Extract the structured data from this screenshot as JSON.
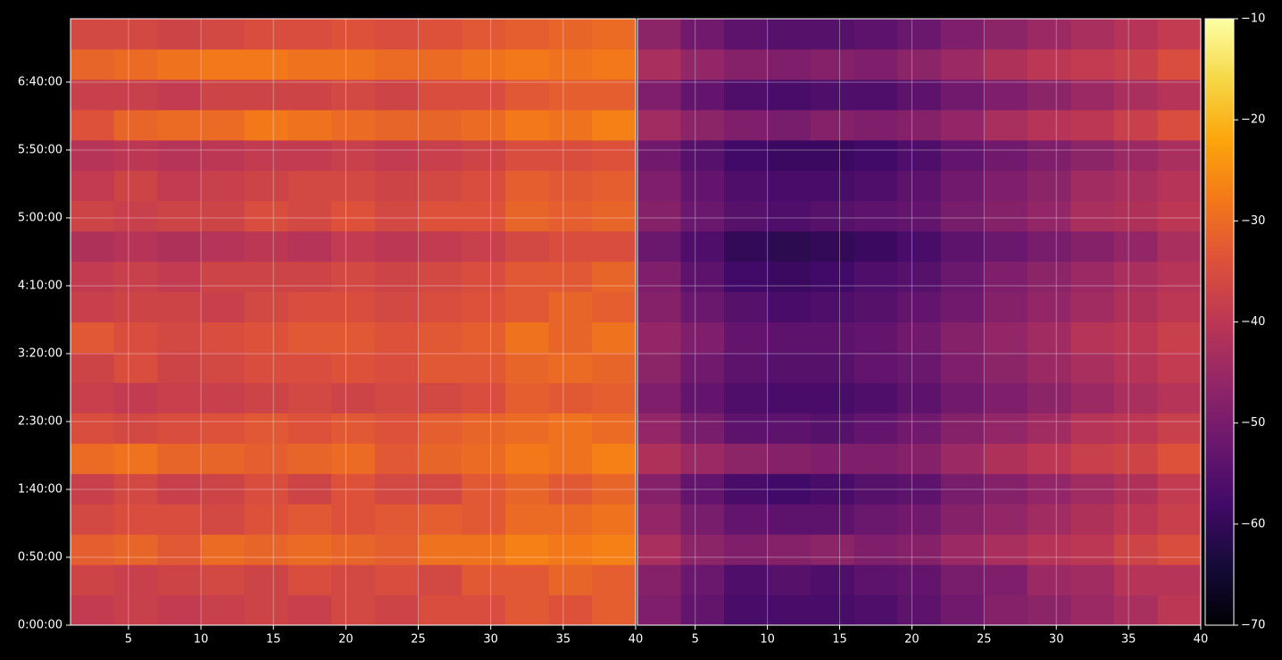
{
  "chart_data": {
    "type": "heatmap",
    "colormap": "inferno",
    "grid": true,
    "xbins": [
      1,
      4,
      7,
      10,
      13,
      16,
      19,
      22,
      25,
      28,
      31,
      34,
      37,
      40
    ],
    "ybins": [
      0,
      1340,
      2680,
      4020,
      5360,
      6700,
      8040,
      9380,
      10720,
      12060,
      13400,
      14740,
      16080,
      17420,
      18760,
      20100,
      21440,
      22780,
      24120,
      25460,
      26800
    ],
    "xlim": [
      1,
      40
    ],
    "xticks": [
      5,
      10,
      15,
      20,
      25,
      30,
      35,
      40
    ],
    "ylim": [
      0,
      26800
    ],
    "yticks": [
      {
        "value": 0,
        "label": "0:00:00"
      },
      {
        "value": 3000,
        "label": "0:50:00"
      },
      {
        "value": 6000,
        "label": "1:40:00"
      },
      {
        "value": 9000,
        "label": "2:30:00"
      },
      {
        "value": 12000,
        "label": "3:20:00"
      },
      {
        "value": 15000,
        "label": "4:10:00"
      },
      {
        "value": 18000,
        "label": "5:00:00"
      },
      {
        "value": 21000,
        "label": "5:50:00"
      },
      {
        "value": 24000,
        "label": "6:40:00"
      }
    ],
    "zlim": [
      -70,
      -10
    ],
    "zticks": [
      {
        "value": -70,
        "label": "−70"
      },
      {
        "value": -60,
        "label": "−60"
      },
      {
        "value": -50,
        "label": "−50"
      },
      {
        "value": -40,
        "label": "−40"
      },
      {
        "value": -30,
        "label": "−30"
      },
      {
        "value": -20,
        "label": "−20"
      },
      {
        "value": -10,
        "label": "−10"
      }
    ],
    "panels": [
      {
        "z": [
          [
            -39,
            -38,
            -39,
            -38,
            -37,
            -38,
            -36,
            -37,
            -35,
            -35,
            -33,
            -34,
            -32
          ],
          [
            -37,
            -38,
            -37,
            -36,
            -37,
            -35,
            -36,
            -35,
            -36,
            -33,
            -33,
            -31,
            -32
          ],
          [
            -32,
            -31,
            -33,
            -30,
            -31,
            -30,
            -31,
            -32,
            -29,
            -29,
            -27,
            -28,
            -27
          ],
          [
            -36,
            -35,
            -35,
            -36,
            -34,
            -33,
            -34,
            -33,
            -32,
            -33,
            -30,
            -30,
            -29
          ],
          [
            -38,
            -36,
            -38,
            -37,
            -35,
            -37,
            -34,
            -36,
            -36,
            -33,
            -31,
            -33,
            -31
          ],
          [
            -30,
            -29,
            -31,
            -31,
            -32,
            -31,
            -30,
            -33,
            -31,
            -30,
            -28,
            -29,
            -27
          ],
          [
            -35,
            -36,
            -35,
            -34,
            -33,
            -34,
            -33,
            -34,
            -32,
            -31,
            -30,
            -29,
            -30
          ],
          [
            -38,
            -39,
            -38,
            -38,
            -37,
            -36,
            -37,
            -36,
            -36,
            -35,
            -32,
            -33,
            -32
          ],
          [
            -37,
            -35,
            -37,
            -36,
            -35,
            -35,
            -34,
            -35,
            -33,
            -33,
            -31,
            -30,
            -31
          ],
          [
            -33,
            -35,
            -36,
            -35,
            -34,
            -33,
            -33,
            -34,
            -33,
            -32,
            -29,
            -31,
            -29
          ],
          [
            -38,
            -37,
            -37,
            -38,
            -36,
            -35,
            -35,
            -36,
            -35,
            -34,
            -33,
            -31,
            -32
          ],
          [
            -39,
            -38,
            -39,
            -37,
            -37,
            -37,
            -36,
            -37,
            -36,
            -35,
            -33,
            -33,
            -31
          ],
          [
            -42,
            -41,
            -42,
            -41,
            -40,
            -41,
            -39,
            -40,
            -39,
            -38,
            -36,
            -35,
            -35
          ],
          [
            -37,
            -38,
            -37,
            -37,
            -35,
            -36,
            -34,
            -36,
            -34,
            -34,
            -31,
            -32,
            -31
          ],
          [
            -39,
            -37,
            -39,
            -38,
            -37,
            -36,
            -36,
            -37,
            -36,
            -35,
            -32,
            -33,
            -32
          ],
          [
            -41,
            -40,
            -41,
            -40,
            -39,
            -39,
            -38,
            -39,
            -38,
            -37,
            -35,
            -35,
            -34
          ],
          [
            -34,
            -31,
            -30,
            -30,
            -28,
            -29,
            -30,
            -31,
            -31,
            -30,
            -28,
            -29,
            -27
          ],
          [
            -38,
            -38,
            -39,
            -37,
            -37,
            -37,
            -36,
            -37,
            -35,
            -35,
            -33,
            -32,
            -32
          ],
          [
            -31,
            -30,
            -29,
            -28,
            -28,
            -29,
            -29,
            -30,
            -30,
            -29,
            -28,
            -29,
            -28
          ],
          [
            -36,
            -36,
            -37,
            -36,
            -35,
            -35,
            -34,
            -35,
            -34,
            -33,
            -32,
            -31,
            -30
          ]
        ]
      },
      {
        "z": [
          [
            -49,
            -53,
            -57,
            -57,
            -57,
            -56,
            -54,
            -51,
            -48,
            -47,
            -45,
            -43,
            -40
          ],
          [
            -48,
            -52,
            -56,
            -55,
            -56,
            -54,
            -53,
            -50,
            -49,
            -45,
            -44,
            -41,
            -41
          ],
          [
            -43,
            -47,
            -49,
            -48,
            -47,
            -49,
            -48,
            -45,
            -43,
            -41,
            -40,
            -37,
            -35
          ],
          [
            -46,
            -50,
            -53,
            -54,
            -54,
            -52,
            -51,
            -48,
            -46,
            -44,
            -42,
            -40,
            -38
          ],
          [
            -48,
            -53,
            -57,
            -58,
            -57,
            -55,
            -54,
            -50,
            -48,
            -46,
            -44,
            -42,
            -39
          ],
          [
            -42,
            -45,
            -47,
            -48,
            -49,
            -49,
            -48,
            -45,
            -42,
            -40,
            -38,
            -37,
            -34
          ],
          [
            -46,
            -50,
            -54,
            -54,
            -55,
            -53,
            -51,
            -48,
            -46,
            -44,
            -41,
            -40,
            -38
          ],
          [
            -49,
            -53,
            -56,
            -57,
            -57,
            -56,
            -54,
            -51,
            -49,
            -47,
            -45,
            -43,
            -41
          ],
          [
            -47,
            -51,
            -54,
            -55,
            -55,
            -53,
            -52,
            -49,
            -47,
            -45,
            -43,
            -41,
            -39
          ],
          [
            -46,
            -49,
            -53,
            -54,
            -54,
            -53,
            -51,
            -48,
            -46,
            -44,
            -41,
            -40,
            -38
          ],
          [
            -48,
            -52,
            -55,
            -57,
            -56,
            -55,
            -53,
            -51,
            -48,
            -46,
            -44,
            -42,
            -40
          ],
          [
            -49,
            -54,
            -58,
            -59,
            -58,
            -56,
            -55,
            -52,
            -49,
            -47,
            -45,
            -43,
            -41
          ],
          [
            -52,
            -56,
            -60,
            -61,
            -60,
            -59,
            -57,
            -54,
            -52,
            -50,
            -48,
            -46,
            -43
          ],
          [
            -48,
            -52,
            -55,
            -56,
            -55,
            -54,
            -53,
            -50,
            -48,
            -46,
            -43,
            -42,
            -40
          ],
          [
            -49,
            -53,
            -56,
            -57,
            -57,
            -56,
            -54,
            -51,
            -49,
            -47,
            -44,
            -43,
            -41
          ],
          [
            -51,
            -55,
            -58,
            -59,
            -59,
            -58,
            -56,
            -53,
            -51,
            -49,
            -47,
            -45,
            -43
          ],
          [
            -44,
            -47,
            -49,
            -50,
            -48,
            -49,
            -48,
            -46,
            -43,
            -41,
            -40,
            -38,
            -35
          ],
          [
            -49,
            -53,
            -56,
            -57,
            -56,
            -56,
            -54,
            -51,
            -49,
            -47,
            -45,
            -43,
            -41
          ],
          [
            -43,
            -46,
            -48,
            -49,
            -48,
            -49,
            -47,
            -45,
            -42,
            -40,
            -39,
            -38,
            -35
          ],
          [
            -47,
            -51,
            -54,
            -55,
            -55,
            -54,
            -52,
            -49,
            -47,
            -45,
            -43,
            -41,
            -39
          ]
        ]
      }
    ]
  }
}
